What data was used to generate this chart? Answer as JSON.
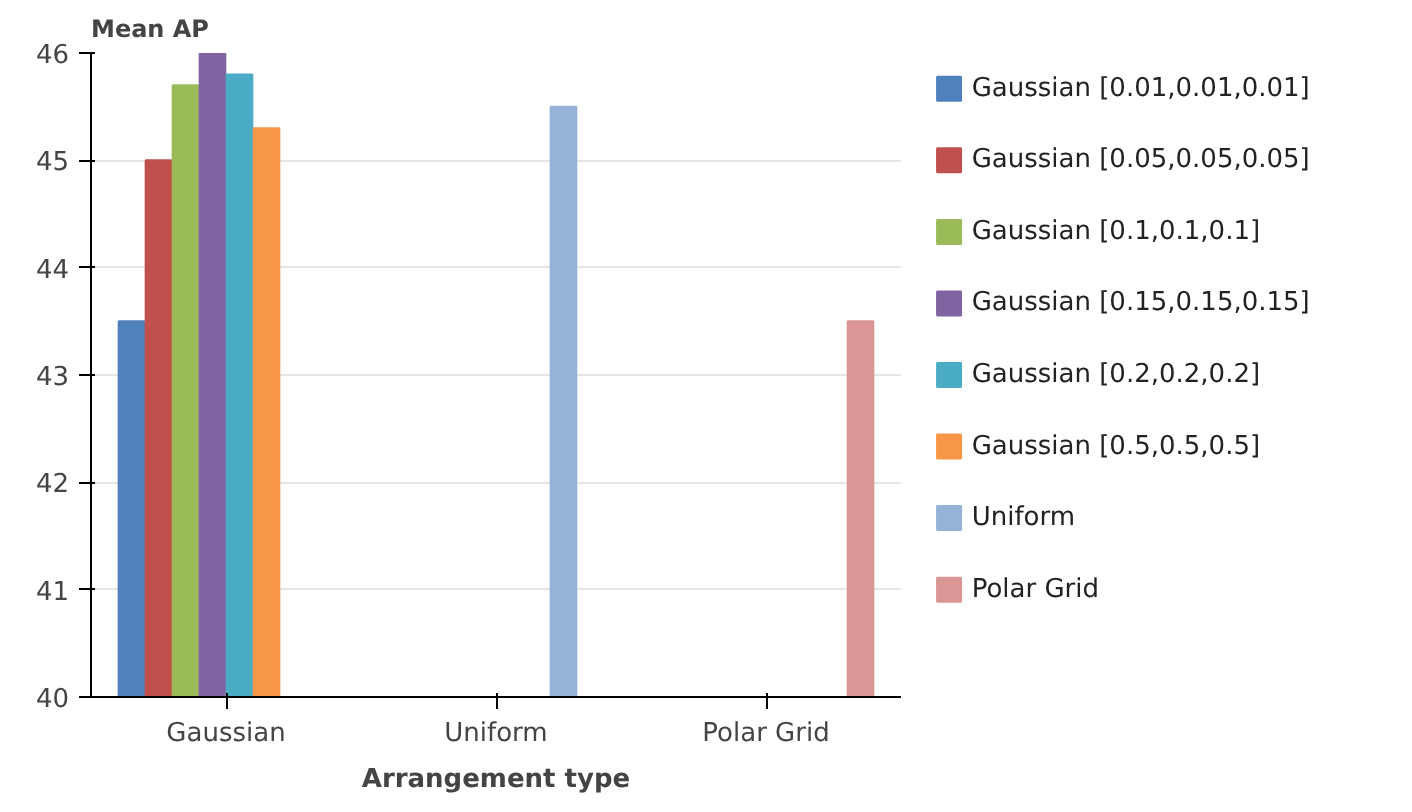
{
  "chart_data": {
    "type": "bar",
    "ylabel": "Mean AP",
    "xlabel": "Arrangement type",
    "categories": [
      "Gaussian",
      "Uniform",
      "Polar Grid"
    ],
    "ylim": [
      40,
      46
    ],
    "yticks": [
      40,
      41,
      42,
      43,
      44,
      45,
      46
    ],
    "grid": "y",
    "legend": "right",
    "series": [
      {
        "name": "Gaussian [0.01,0.01,0.01]",
        "color": "#4f81bd",
        "values": [
          43.5,
          null,
          null
        ]
      },
      {
        "name": " Gaussian [0.05,0.05,0.05]",
        "color": "#c0504d",
        "values": [
          45,
          null,
          null
        ]
      },
      {
        "name": "Gaussian [0.1,0.1,0.1]",
        "color": "#9bbb59",
        "values": [
          45.7,
          null,
          null
        ]
      },
      {
        "name": "Gaussian [0.15,0.15,0.15]",
        "color": "#8064a2",
        "values": [
          46,
          null,
          null
        ]
      },
      {
        "name": "Gaussian [0.2,0.2,0.2]",
        "color": "#4bacc6",
        "values": [
          45.8,
          null,
          null
        ]
      },
      {
        "name": "Gaussian [0.5,0.5,0.5]",
        "color": "#f79646",
        "values": [
          45.3,
          null,
          null
        ]
      },
      {
        "name": "Uniform",
        "color": "#95b3d7",
        "values": [
          null,
          45.5,
          null
        ]
      },
      {
        "name": "Polar Grid",
        "color": "#d99694",
        "values": [
          null,
          null,
          43.5
        ]
      }
    ]
  }
}
